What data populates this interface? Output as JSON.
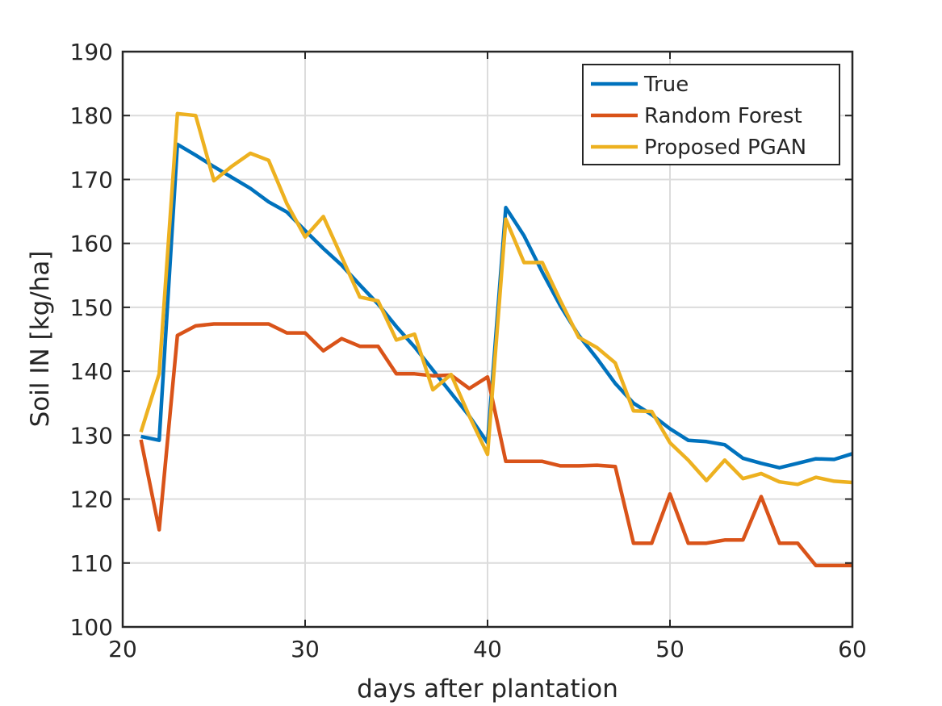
{
  "chart_data": {
    "type": "line",
    "title": "",
    "xlabel": "days after plantation",
    "ylabel": "Soil IN [kg/ha]",
    "xlim": [
      20,
      60
    ],
    "ylim": [
      100,
      190
    ],
    "xticks": [
      20,
      30,
      40,
      50,
      60
    ],
    "yticks": [
      100,
      110,
      120,
      130,
      140,
      150,
      160,
      170,
      180,
      190
    ],
    "grid": true,
    "legend_position": "top-right",
    "series": [
      {
        "name": "True",
        "color": "#0072BD",
        "x": [
          21,
          22,
          23,
          24,
          25,
          26,
          27,
          28,
          29,
          30,
          31,
          32,
          33,
          34,
          35,
          36,
          37,
          38,
          39,
          40,
          41,
          42,
          43,
          44,
          45,
          46,
          47,
          48,
          49,
          50,
          51,
          52,
          53,
          54,
          55,
          56,
          57,
          58,
          59,
          60
        ],
        "values": [
          129.8,
          129.2,
          175.5,
          173.8,
          172.0,
          170.3,
          168.6,
          166.5,
          164.9,
          162.0,
          159.2,
          156.6,
          153.5,
          150.5,
          147.0,
          143.8,
          140.2,
          136.6,
          133.0,
          128.8,
          165.6,
          161.2,
          155.5,
          150.2,
          145.6,
          142.0,
          138.1,
          135.0,
          133.2,
          131.0,
          129.2,
          129.0,
          128.5,
          126.4,
          125.6,
          124.9,
          125.6,
          126.3,
          126.2,
          127.1
        ]
      },
      {
        "name": "Random Forest",
        "color": "#D95319",
        "x": [
          21,
          22,
          23,
          24,
          25,
          26,
          27,
          28,
          29,
          30,
          31,
          32,
          33,
          34,
          35,
          36,
          37,
          38,
          39,
          40,
          41,
          42,
          43,
          44,
          45,
          46,
          47,
          48,
          49,
          50,
          51,
          52,
          53,
          54,
          55,
          56,
          57,
          58,
          59,
          60
        ],
        "values": [
          129.3,
          115.2,
          145.6,
          147.1,
          147.4,
          147.4,
          147.4,
          147.4,
          146.0,
          146.0,
          143.2,
          145.1,
          143.9,
          143.9,
          139.6,
          139.6,
          139.3,
          139.4,
          137.3,
          139.1,
          125.9,
          125.9,
          125.9,
          125.2,
          125.2,
          125.3,
          125.1,
          113.1,
          113.1,
          120.8,
          113.1,
          113.1,
          113.6,
          113.6,
          120.4,
          113.1,
          113.1,
          109.6,
          109.6,
          109.6
        ]
      },
      {
        "name": "Proposed PGAN",
        "color": "#EDB120",
        "x": [
          21,
          22,
          23,
          24,
          25,
          26,
          27,
          28,
          29,
          30,
          31,
          32,
          33,
          34,
          35,
          36,
          37,
          38,
          39,
          40,
          41,
          42,
          43,
          44,
          45,
          46,
          47,
          48,
          49,
          50,
          51,
          52,
          53,
          54,
          55,
          56,
          57,
          58,
          59,
          60
        ],
        "values": [
          130.5,
          139.6,
          180.3,
          180.0,
          169.8,
          172.1,
          174.1,
          173.0,
          166.2,
          161.0,
          164.2,
          157.9,
          151.6,
          151.0,
          144.9,
          145.8,
          137.1,
          139.5,
          133.0,
          127.0,
          163.8,
          157.0,
          157.0,
          151.0,
          145.3,
          143.7,
          141.3,
          133.8,
          133.7,
          128.8,
          126.1,
          122.9,
          126.1,
          123.2,
          124.0,
          122.7,
          122.3,
          123.4,
          122.8,
          122.6
        ]
      }
    ]
  }
}
